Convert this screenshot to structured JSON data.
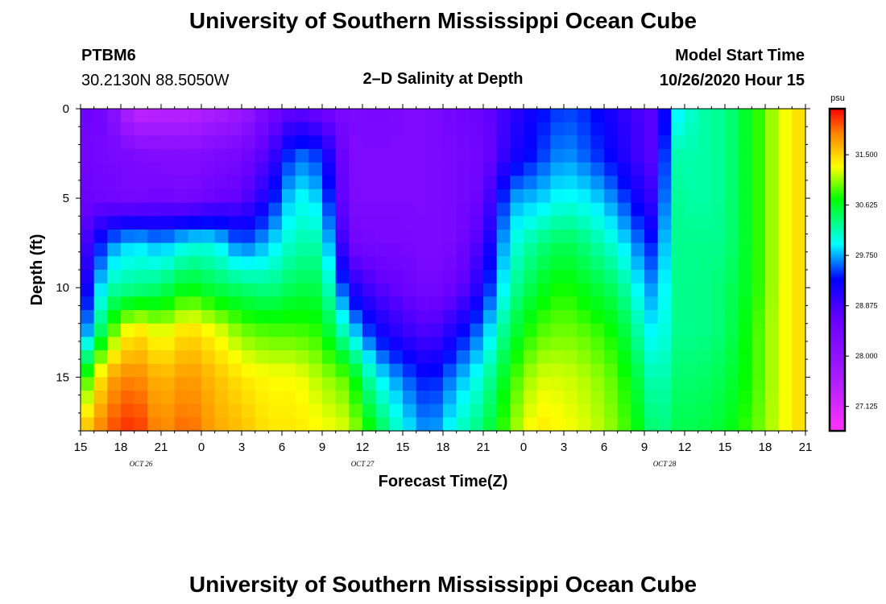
{
  "header": {
    "title": "University of Southern Mississippi Ocean Cube",
    "station_id": "PTBM6",
    "station_coords": "30.2130N 88.5050W",
    "plot_title": "2–D Salinity at Depth",
    "model_start_label": "Model Start Time",
    "model_start_value": "10/26/2020 Hour 15"
  },
  "footer": {
    "title": "University of Southern Mississippi Ocean Cube"
  },
  "chart_data": {
    "type": "heatmap",
    "title": "2–D Salinity at Depth",
    "xlabel": "Forecast Time(Z)",
    "ylabel": "Depth (ft)",
    "x_ticks": [
      "15",
      "18",
      "21",
      "0",
      "3",
      "6",
      "9",
      "12",
      "15",
      "18",
      "21",
      "0",
      "3",
      "6",
      "9",
      "12",
      "15",
      "18",
      "21"
    ],
    "x_tick_hours": [
      0,
      3,
      6,
      9,
      12,
      15,
      18,
      21,
      24,
      27,
      30,
      33,
      36,
      39,
      42,
      45,
      48,
      51,
      54
    ],
    "x_range_hours": [
      0,
      54
    ],
    "date_labels": [
      {
        "text": "OCT 26",
        "hour": 4.5
      },
      {
        "text": "OCT 27",
        "hour": 21
      },
      {
        "text": "OCT 28",
        "hour": 43.5
      }
    ],
    "y_ticks": [
      0,
      5,
      10,
      15
    ],
    "ylim": [
      0,
      18
    ],
    "y_inverted": true,
    "colorbar": {
      "unit": "psu",
      "ticks": [
        31.5,
        30.625,
        29.75,
        28.875,
        28.0,
        27.125
      ],
      "tick_labels": [
        "31.500",
        "30.625",
        "29.750",
        "28.875",
        "28.000",
        "27.125"
      ],
      "range": [
        26.7,
        32.3
      ]
    },
    "column_hours": [
      0,
      2,
      4,
      6,
      8,
      10,
      12,
      14,
      16,
      18,
      20,
      22,
      24,
      26,
      28,
      30,
      32,
      34,
      36,
      38,
      40,
      42,
      43,
      44,
      46,
      48,
      50,
      52,
      54
    ],
    "depth_levels": [
      0,
      2.5,
      5,
      7.5,
      10,
      12.5,
      15,
      18
    ],
    "values": [
      [
        28.6,
        28.5,
        28.6,
        28.7,
        28.9,
        29.4,
        30.6,
        31.5
      ],
      [
        28.4,
        28.4,
        28.5,
        29.6,
        30.2,
        30.8,
        31.7,
        32.0
      ],
      [
        27.3,
        28.3,
        28.4,
        29.9,
        30.3,
        31.5,
        31.9,
        32.2
      ],
      [
        27.4,
        28.2,
        28.5,
        29.7,
        30.4,
        31.2,
        31.6,
        31.8
      ],
      [
        27.4,
        28.2,
        28.4,
        30.0,
        30.7,
        31.5,
        31.8,
        32.0
      ],
      [
        27.6,
        28.3,
        28.6,
        30.0,
        30.5,
        31.3,
        31.6,
        31.7
      ],
      [
        27.8,
        28.4,
        28.7,
        29.5,
        30.4,
        31.0,
        31.4,
        31.6
      ],
      [
        28.4,
        28.8,
        29.2,
        29.8,
        30.3,
        30.9,
        31.3,
        31.4
      ],
      [
        28.7,
        29.6,
        30.0,
        30.2,
        30.5,
        30.9,
        31.3,
        31.4
      ],
      [
        28.5,
        29.4,
        29.8,
        30.2,
        30.5,
        30.8,
        31.1,
        31.3
      ],
      [
        28.3,
        28.3,
        28.3,
        28.5,
        29.2,
        30.0,
        30.9,
        31.2
      ],
      [
        28.4,
        28.3,
        28.3,
        28.4,
        28.8,
        29.3,
        30.0,
        30.6
      ],
      [
        28.3,
        28.3,
        28.3,
        28.4,
        28.6,
        29.0,
        29.6,
        30.0
      ],
      [
        28.3,
        28.3,
        28.3,
        28.3,
        28.4,
        28.8,
        29.3,
        29.6
      ],
      [
        28.5,
        28.4,
        28.4,
        28.4,
        28.6,
        29.2,
        29.7,
        30.1
      ],
      [
        28.6,
        28.5,
        28.6,
        28.9,
        29.2,
        29.7,
        30.1,
        30.4
      ],
      [
        29.0,
        29.1,
        29.7,
        30.0,
        30.2,
        30.5,
        30.8,
        31.0
      ],
      [
        29.3,
        29.4,
        29.8,
        30.3,
        30.6,
        30.9,
        31.2,
        31.4
      ],
      [
        29.5,
        29.7,
        30.0,
        30.5,
        30.8,
        31.0,
        31.2,
        31.3
      ],
      [
        29.4,
        29.5,
        29.9,
        30.3,
        30.6,
        30.9,
        31.1,
        31.2
      ],
      [
        29.1,
        29.2,
        29.6,
        30.0,
        30.4,
        30.7,
        30.9,
        31.0
      ],
      [
        28.8,
        28.8,
        29.1,
        29.5,
        29.8,
        30.1,
        30.4,
        30.6
      ],
      [
        28.7,
        28.7,
        28.9,
        29.3,
        29.6,
        29.8,
        30.0,
        30.2
      ],
      [
        29.8,
        30.2,
        30.3,
        30.3,
        30.3,
        30.3,
        30.4,
        30.5
      ],
      [
        30.2,
        30.2,
        30.2,
        30.3,
        30.3,
        30.3,
        30.4,
        30.5
      ],
      [
        30.3,
        30.3,
        30.3,
        30.3,
        30.4,
        30.4,
        30.5,
        30.6
      ],
      [
        30.7,
        30.7,
        30.7,
        30.7,
        30.7,
        30.8,
        30.8,
        30.9
      ],
      [
        31.2,
        31.2,
        31.2,
        31.2,
        31.2,
        31.2,
        31.2,
        31.2
      ],
      [
        31.5,
        31.5,
        31.5,
        31.5,
        31.5,
        31.5,
        31.5,
        31.5
      ]
    ]
  }
}
